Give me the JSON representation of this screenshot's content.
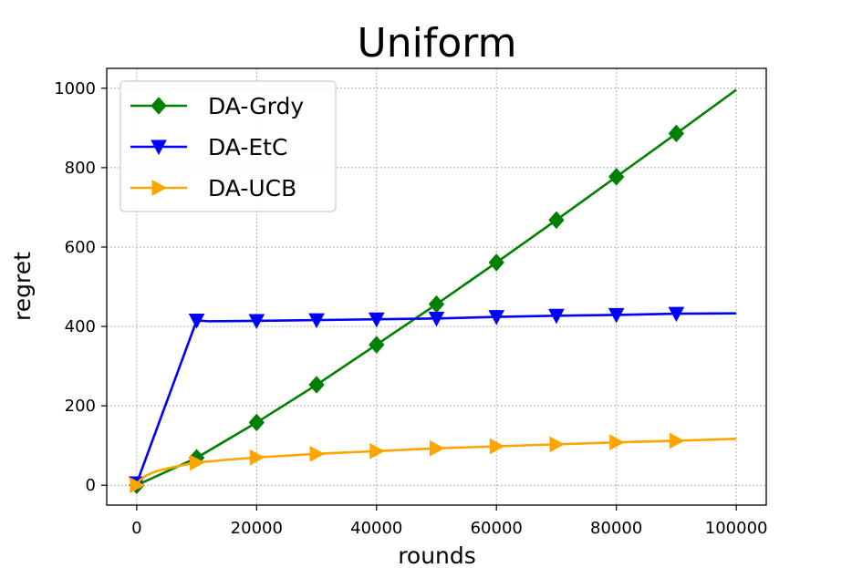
{
  "chart_data": {
    "type": "line",
    "title": "Uniform",
    "xlabel": "rounds",
    "ylabel": "regret",
    "xlim": [
      -5000,
      105000
    ],
    "ylim": [
      -50,
      1050
    ],
    "xticks": [
      0,
      20000,
      40000,
      60000,
      80000,
      100000
    ],
    "xtick_labels": [
      "0",
      "20000",
      "40000",
      "60000",
      "80000",
      "100000"
    ],
    "yticks": [
      0,
      200,
      400,
      600,
      800,
      1000
    ],
    "ytick_labels": [
      "0",
      "200",
      "400",
      "600",
      "800",
      "1000"
    ],
    "grid": true,
    "legend_position": "upper-left",
    "series": [
      {
        "name": "DA-Grdy",
        "color": "#008000",
        "marker": "diamond",
        "x": [
          0,
          10000,
          20000,
          30000,
          40000,
          50000,
          60000,
          70000,
          80000,
          90000,
          100000
        ],
        "y": [
          0,
          69,
          158,
          253,
          354,
          456,
          561,
          668,
          777,
          886,
          996
        ],
        "marker_x": [
          0,
          10000,
          20000,
          30000,
          40000,
          50000,
          60000,
          70000,
          80000,
          90000
        ]
      },
      {
        "name": "DA-EtC",
        "color": "#0000ff",
        "marker": "triangle-down",
        "x": [
          0,
          10000,
          12000,
          20000,
          30000,
          40000,
          50000,
          60000,
          70000,
          80000,
          90000,
          100000
        ],
        "y": [
          5,
          415,
          413,
          414,
          416,
          418,
          420,
          424,
          427,
          429,
          432,
          433
        ],
        "marker_x": [
          0,
          10000,
          20000,
          30000,
          40000,
          50000,
          60000,
          70000,
          80000,
          90000
        ]
      },
      {
        "name": "DA-UCB",
        "color": "#ffa500",
        "marker": "triangle-right",
        "x": [
          0,
          500,
          1500,
          3000,
          5000,
          7500,
          10000,
          15000,
          20000,
          30000,
          40000,
          50000,
          60000,
          70000,
          80000,
          90000,
          100000
        ],
        "y": [
          0,
          12,
          24,
          34,
          42,
          50,
          57,
          64,
          70,
          79,
          86,
          93,
          98,
          103,
          108,
          112,
          117
        ],
        "marker_x": [
          0,
          10000,
          20000,
          30000,
          40000,
          50000,
          60000,
          70000,
          80000,
          90000
        ]
      }
    ]
  }
}
